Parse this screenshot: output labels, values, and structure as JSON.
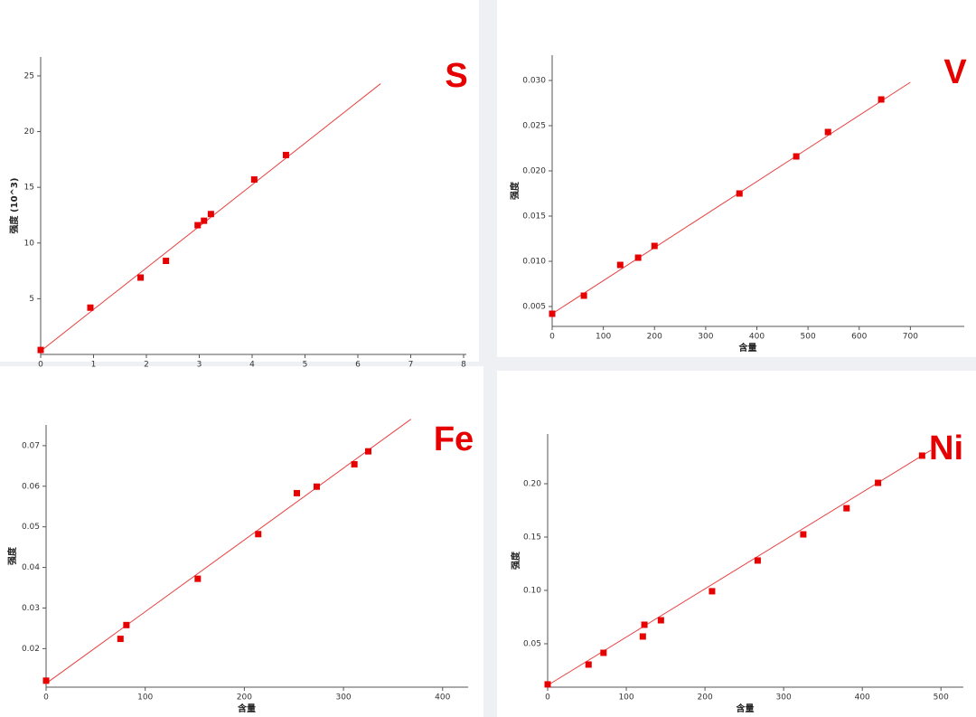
{
  "chart_data": [
    {
      "type": "scatter",
      "title": "S",
      "y_label": "强度 (10^3)",
      "color": "#e60000",
      "line_color": "#e84040",
      "x": [
        0,
        0.94,
        1.89,
        2.37,
        2.97,
        3.09,
        3.22,
        4.04,
        4.64
      ],
      "values": [
        0.4,
        4.2,
        6.9,
        8.4,
        11.6,
        12.0,
        12.6,
        15.7,
        17.9
      ],
      "fit": {
        "x": [
          0,
          6.43
        ],
        "values": [
          0.3,
          24.3
        ]
      },
      "xlim": [
        0,
        8
      ],
      "ylim": [
        0,
        26.7
      ],
      "xticks": [
        0,
        1,
        2,
        3,
        4,
        5,
        6,
        7,
        8
      ],
      "yticks": [
        5,
        10,
        15,
        20,
        25
      ],
      "grid": false
    },
    {
      "type": "scatter",
      "title": "V",
      "x_label": "含量",
      "y_label": "强度",
      "color": "#e60000",
      "line_color": "#e84040",
      "x": [
        0,
        62,
        133,
        168,
        200,
        366,
        477,
        539,
        643
      ],
      "values": [
        0.0042,
        0.0062,
        0.0096,
        0.0104,
        0.0117,
        0.0175,
        0.0216,
        0.0243,
        0.0279
      ],
      "fit": {
        "x": [
          0,
          700
        ],
        "values": [
          0.0042,
          0.0298
        ]
      },
      "xlim": [
        0,
        800
      ],
      "ylim": [
        0.0028,
        0.0328
      ],
      "xticks": [
        0,
        100,
        200,
        300,
        400,
        500,
        600,
        700
      ],
      "yticks": [
        0.005,
        {
          "value": 0.01,
          "label": "0.010"
        },
        0.015,
        {
          "value": 0.02,
          "label": "0.020"
        },
        0.025,
        {
          "value": 0.03,
          "label": "0.030"
        }
      ],
      "grid": false
    },
    {
      "type": "scatter",
      "title": "Fe",
      "x_label": "含量",
      "y_label": "强度",
      "color": "#e60000",
      "line_color": "#e84040",
      "x": [
        0,
        75,
        81,
        153,
        214,
        253,
        273,
        311,
        325
      ],
      "values": [
        0.0121,
        0.0224,
        0.0258,
        0.0372,
        0.0482,
        0.0583,
        0.0599,
        0.0654,
        0.0686
      ],
      "fit": {
        "x": [
          0,
          368
        ],
        "values": [
          0.0114,
          0.0765
        ]
      },
      "xlim": [
        0,
        423
      ],
      "ylim": [
        0.0105,
        0.0751
      ],
      "xticks": [
        0,
        100,
        200,
        300,
        400
      ],
      "yticks": [
        0.02,
        0.03,
        0.04,
        0.05,
        0.06,
        0.07
      ],
      "grid": false
    },
    {
      "type": "scatter",
      "title": "Ni",
      "x_label": "含量",
      "y_label": "强度",
      "color": "#e60000",
      "line_color": "#e84040",
      "x": [
        0,
        52,
        71,
        121,
        123,
        144,
        209,
        267,
        325,
        380,
        420,
        476
      ],
      "values": [
        0.0119,
        0.0305,
        0.0415,
        0.0568,
        0.0678,
        0.072,
        0.0992,
        0.128,
        0.1525,
        0.177,
        0.2008,
        0.2263
      ],
      "fit": {
        "x": [
          0,
          487
        ],
        "values": [
          0.011,
          0.2313
        ]
      },
      "xlim": [
        0,
        525
      ],
      "ylim": [
        0.0093,
        0.2466
      ],
      "xticks": [
        0,
        100,
        200,
        300,
        400,
        500
      ],
      "yticks": [
        0.05,
        {
          "value": 0.1,
          "label": "0.10"
        },
        0.15,
        {
          "value": 0.2,
          "label": "0.20"
        }
      ],
      "grid": false
    }
  ]
}
